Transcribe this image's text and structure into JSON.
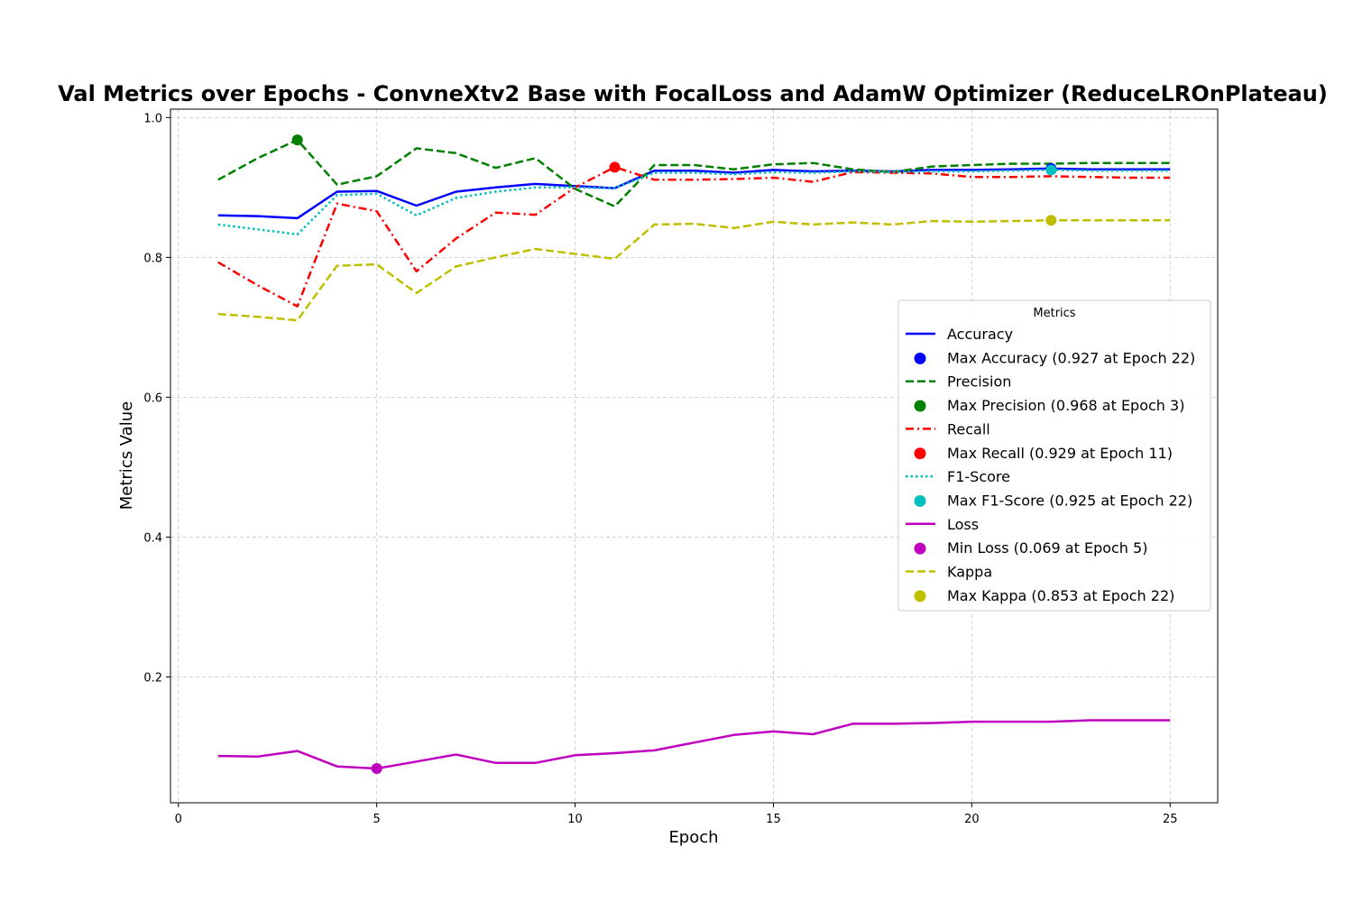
{
  "chart_data": {
    "type": "line",
    "title": "Val Metrics over Epochs - ConvneXtv2 Base with FocalLoss and AdamW Optimizer (ReduceLROnPlateau)",
    "xlabel": "Epoch",
    "ylabel": "Metrics Value",
    "xlim": [
      -0.2,
      26.2
    ],
    "ylim": [
      0.02,
      1.012
    ],
    "grid": true,
    "legend_title": "Metrics",
    "legend_position": "center-right",
    "x_ticks": [
      0,
      5,
      10,
      15,
      20,
      25
    ],
    "x_tick_labels": [
      "0",
      "5",
      "10",
      "15",
      "20",
      "25"
    ],
    "y_ticks": [
      0.2,
      0.4,
      0.6,
      0.8,
      1.0
    ],
    "y_tick_labels": [
      "0.2",
      "0.4",
      "0.6",
      "0.8",
      "1.0"
    ],
    "x": [
      1,
      2,
      3,
      4,
      5,
      6,
      7,
      8,
      9,
      10,
      11,
      12,
      13,
      14,
      15,
      16,
      17,
      18,
      19,
      20,
      21,
      22,
      23,
      24,
      25
    ],
    "series": [
      {
        "name": "Accuracy",
        "color": "#0000ff",
        "dash": "solid",
        "values": [
          0.86,
          0.859,
          0.856,
          0.894,
          0.895,
          0.874,
          0.894,
          0.9,
          0.905,
          0.902,
          0.899,
          0.924,
          0.924,
          0.921,
          0.925,
          0.923,
          0.924,
          0.923,
          0.925,
          0.925,
          0.926,
          0.927,
          0.926,
          0.926,
          0.926
        ]
      },
      {
        "name": "Precision",
        "color": "#008000",
        "dash": "dashed",
        "values": [
          0.911,
          0.942,
          0.968,
          0.904,
          0.916,
          0.956,
          0.949,
          0.928,
          0.942,
          0.898,
          0.873,
          0.932,
          0.932,
          0.926,
          0.933,
          0.935,
          0.926,
          0.922,
          0.93,
          0.932,
          0.934,
          0.934,
          0.935,
          0.935,
          0.935
        ]
      },
      {
        "name": "Recall",
        "color": "#ff0000",
        "dash": "dashdot",
        "values": [
          0.793,
          0.76,
          0.73,
          0.877,
          0.866,
          0.78,
          0.827,
          0.864,
          0.861,
          0.9,
          0.929,
          0.911,
          0.911,
          0.912,
          0.914,
          0.908,
          0.922,
          0.921,
          0.92,
          0.915,
          0.915,
          0.916,
          0.915,
          0.914,
          0.914
        ]
      },
      {
        "name": "F1-Score",
        "color": "#00bfbf",
        "dash": "dotted",
        "values": [
          0.847,
          0.84,
          0.833,
          0.889,
          0.891,
          0.86,
          0.885,
          0.894,
          0.9,
          0.9,
          0.899,
          0.921,
          0.921,
          0.919,
          0.922,
          0.921,
          0.923,
          0.922,
          0.923,
          0.923,
          0.924,
          0.925,
          0.924,
          0.924,
          0.924
        ]
      },
      {
        "name": "Loss",
        "color": "#bf00bf",
        "dash": "solid",
        "values": [
          0.087,
          0.086,
          0.094,
          0.072,
          0.069,
          0.079,
          0.089,
          0.077,
          0.077,
          0.088,
          0.091,
          0.095,
          0.106,
          0.117,
          0.122,
          0.118,
          0.133,
          0.133,
          0.134,
          0.136,
          0.136,
          0.136,
          0.138,
          0.138,
          0.138
        ]
      },
      {
        "name": "Kappa",
        "color": "#bfbf00",
        "dash": "dashed",
        "values": [
          0.719,
          0.715,
          0.71,
          0.788,
          0.79,
          0.749,
          0.787,
          0.8,
          0.812,
          0.805,
          0.798,
          0.847,
          0.848,
          0.842,
          0.851,
          0.847,
          0.85,
          0.847,
          0.852,
          0.851,
          0.852,
          0.853,
          0.853,
          0.853,
          0.853
        ]
      }
    ],
    "markers": [
      {
        "name": "Max Accuracy (0.927 at Epoch 22)",
        "color": "#0000ff",
        "x": 22,
        "y": 0.927
      },
      {
        "name": "Max Precision (0.968 at Epoch 3)",
        "color": "#008000",
        "x": 3,
        "y": 0.968
      },
      {
        "name": "Max Recall (0.929 at Epoch 11)",
        "color": "#ff0000",
        "x": 11,
        "y": 0.929
      },
      {
        "name": "Max F1-Score (0.925 at Epoch 22)",
        "color": "#00bfbf",
        "x": 22,
        "y": 0.925
      },
      {
        "name": "Min Loss (0.069 at Epoch 5)",
        "color": "#bf00bf",
        "x": 5,
        "y": 0.069
      },
      {
        "name": "Max Kappa (0.853 at Epoch 22)",
        "color": "#bfbf00",
        "x": 22,
        "y": 0.853
      }
    ]
  }
}
